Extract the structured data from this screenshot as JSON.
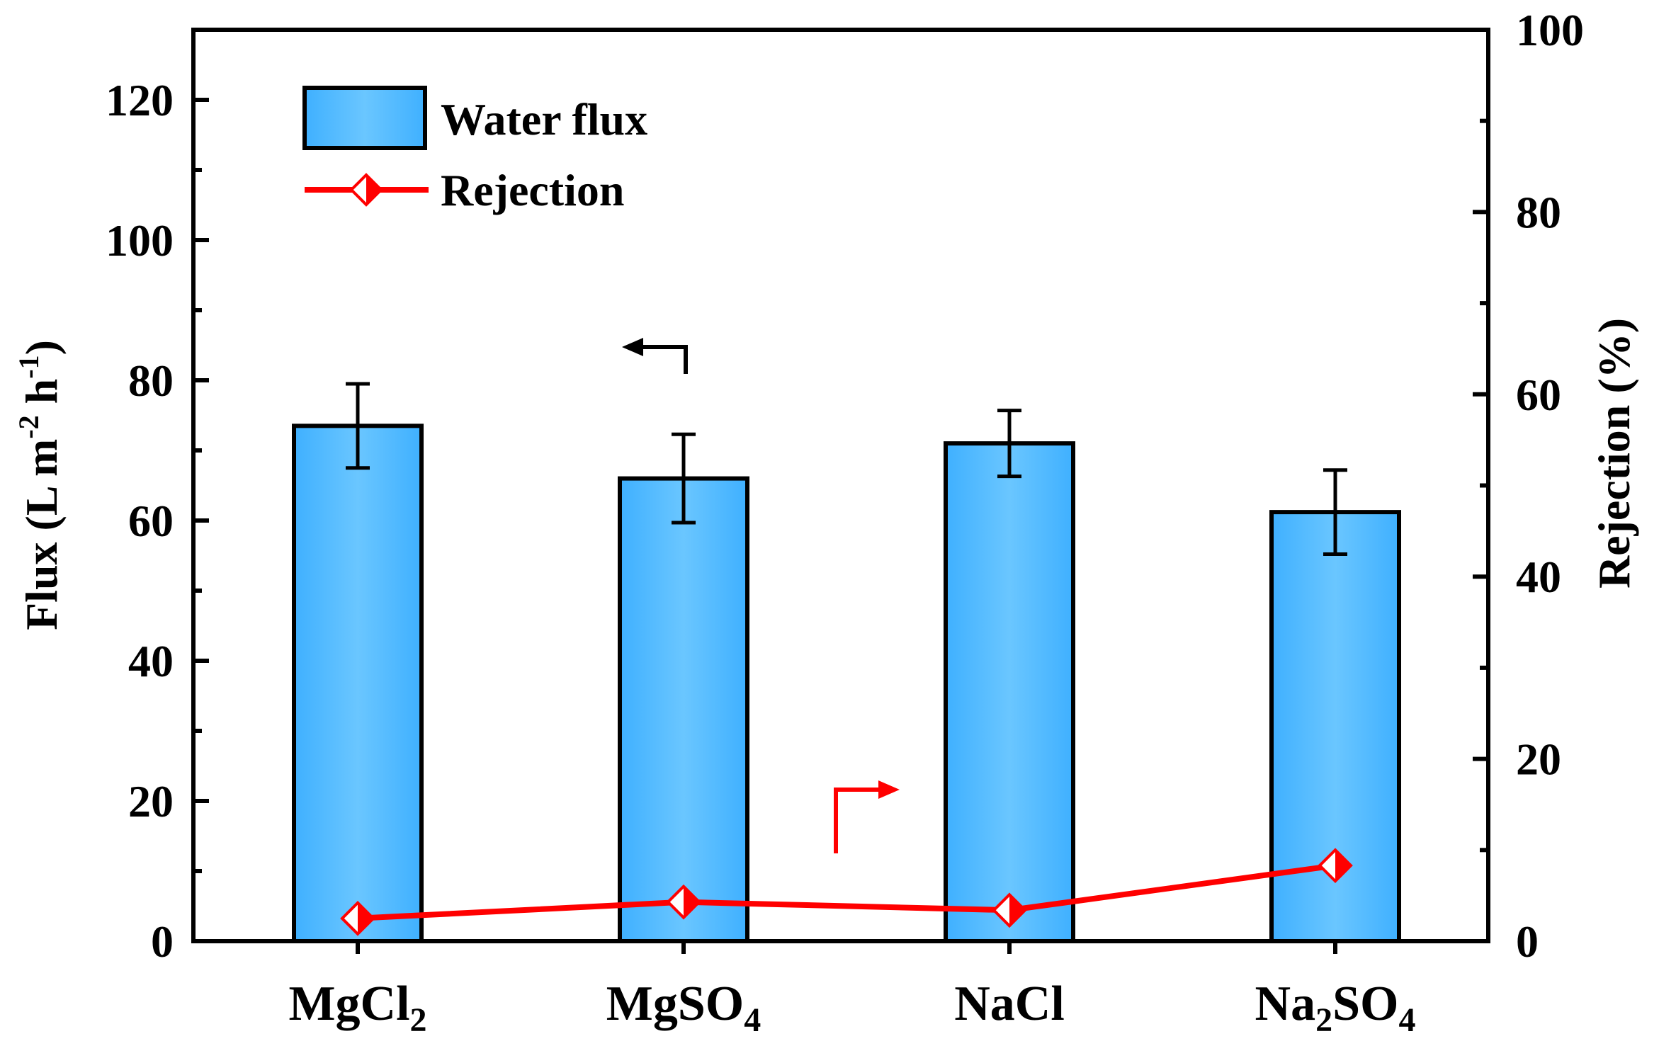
{
  "chart_data": {
    "type": "bar",
    "categories": [
      "MgCl2",
      "MgSO4",
      "NaCl",
      "Na2SO4"
    ],
    "category_labels": [
      {
        "base": "MgCl",
        "sub": "2",
        "tail": ""
      },
      {
        "base": "MgSO",
        "sub": "4",
        "tail": ""
      },
      {
        "base": "NaCl",
        "sub": "",
        "tail": ""
      },
      {
        "base": "Na",
        "sub": "2",
        "tail": "SO4"
      }
    ],
    "series": [
      {
        "name": "Water flux",
        "axis": "left",
        "kind": "bar",
        "values": [
          73.5,
          66,
          71,
          61.2
        ],
        "errors": [
          6.0,
          6.3,
          4.7,
          6.0
        ],
        "color": "#4db8ff"
      },
      {
        "name": "Rejection",
        "axis": "right",
        "kind": "line",
        "values": [
          2.5,
          4.3,
          3.4,
          8.3
        ],
        "color": "#ff0000"
      }
    ],
    "ylabel_left": {
      "main": "Flux (L m",
      "sup1": "-2",
      "mid": " h",
      "sup2": "-1",
      "end": ")"
    },
    "ylabel_right": "Rejection (%)",
    "ylim_left": [
      0,
      130
    ],
    "ylim_right": [
      0,
      100
    ],
    "left_ticks": [
      0,
      20,
      40,
      60,
      80,
      100,
      120
    ],
    "right_ticks": [
      0,
      20,
      40,
      60,
      80,
      100
    ],
    "legend_position": "top-left",
    "grid": false
  }
}
